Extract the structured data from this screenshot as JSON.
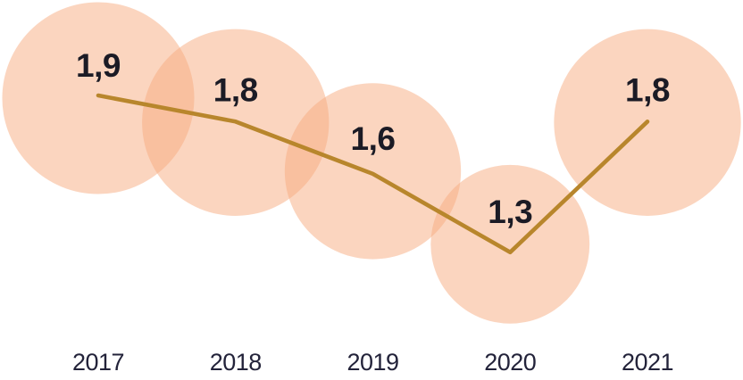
{
  "chart_data": {
    "type": "line",
    "subtype": "bubble-line",
    "title": "",
    "xlabel": "",
    "ylabel": "",
    "categories": [
      "2017",
      "2018",
      "2019",
      "2020",
      "2021"
    ],
    "values": [
      1.9,
      1.8,
      1.6,
      1.3,
      1.8
    ],
    "value_labels": [
      "1,9",
      "1,8",
      "1,6",
      "1,3",
      "1,8"
    ],
    "decimal_separator": ",",
    "grid": false,
    "legend": false,
    "axes_hidden": true,
    "bubble_scaling": "area",
    "ylim": [
      1.3,
      1.9
    ],
    "colors": {
      "bubble": "#F7AB7F",
      "bubble_opacity": 0.5,
      "line": "#B8862C",
      "value_label": "#1B1B25",
      "axis_label": "#23233A",
      "background": "#FFFFFF"
    }
  }
}
